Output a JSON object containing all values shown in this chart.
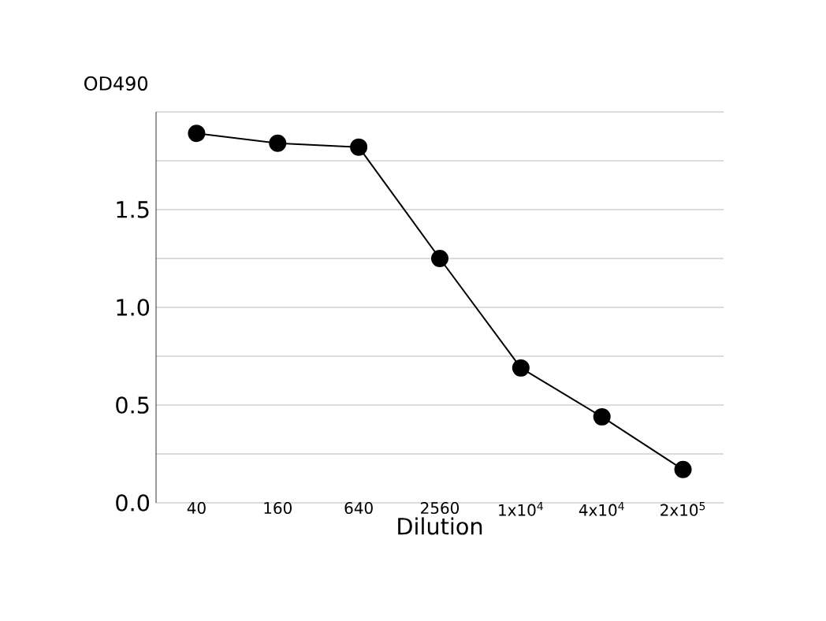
{
  "chart_data": {
    "type": "line",
    "xlabel": "Dilution",
    "ylabel": "OD490",
    "categories": [
      "40",
      "160",
      "640",
      "2560",
      "1x10$^{4}$",
      "4x10$^{4}$",
      "2x10$^{5}$"
    ],
    "values": [
      1.89,
      1.84,
      1.82,
      1.25,
      0.69,
      0.44,
      0.17
    ],
    "color": "#000000",
    "marker": "circle",
    "line_style": "solid",
    "ylim": [
      0,
      2
    ],
    "yticks": [
      {
        "value": 0,
        "label": "0.0"
      },
      {
        "value": 0.25,
        "label": null
      },
      0.5,
      {
        "value": 0.75,
        "label": null
      },
      {
        "value": 1.0,
        "label": "1.0"
      },
      {
        "value": 1.25,
        "label": null
      },
      1.5,
      {
        "value": 1.75,
        "label": null
      },
      {
        "value": 2.0,
        "label": null
      }
    ],
    "grid": "y"
  }
}
